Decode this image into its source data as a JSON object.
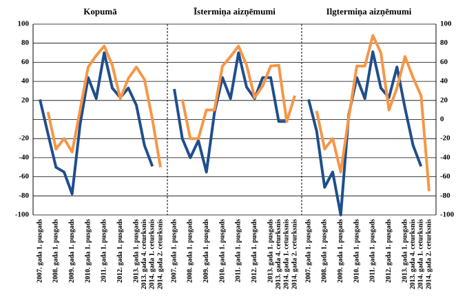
{
  "chart_data": {
    "type": "line",
    "ylim": [
      -100,
      100
    ],
    "yticks": [
      100,
      80,
      60,
      40,
      20,
      -20,
      -40,
      -60,
      -80,
      -100
    ],
    "y2lim": [
      -100,
      100
    ],
    "y2ticks": [
      100,
      80,
      60,
      40,
      20,
      0,
      -20,
      -40,
      -60,
      -80,
      -100
    ],
    "grid": true,
    "categories": [
      "2007. gada 1. pusgads",
      null,
      "2008. gada 1. pusgads",
      null,
      "2009. gada 1. pusgads",
      null,
      "2010. gada 1. pusgads",
      null,
      "2011. gada 1. pusgads",
      null,
      "2012. gada 1. pusgads",
      null,
      "2013. gada 1. pusgads",
      "2013. gada 4. ceturksnis",
      "2014. gada 1. ceturksnis",
      "2014. gada 2. ceturksnis"
    ],
    "panels": [
      {
        "title": "Kopumā",
        "series": [
          {
            "color": "#1f4e8c",
            "values": [
              21,
              -15,
              -50,
              -55,
              -78,
              -5,
              44,
              22,
              70,
              33,
              23,
              33,
              15,
              -27,
              -49,
              null
            ]
          },
          {
            "color": "#f79646",
            "values": [
              null,
              8,
              -31,
              -20,
              -34,
              10,
              55,
              67,
              77,
              57,
              22,
              43,
              55,
              42,
              0,
              -50
            ]
          }
        ]
      },
      {
        "title": "Īstermiņa aizņēmumi",
        "series": [
          {
            "color": "#1f4e8c",
            "values": [
              32,
              -20,
              -40,
              -22,
              -55,
              7,
              44,
              22,
              70,
              34,
              22,
              44,
              44,
              -2,
              -2,
              null
            ]
          },
          {
            "color": "#f79646",
            "values": [
              null,
              21,
              -20,
              -20,
              10,
              10,
              56,
              66,
              77,
              57,
              23,
              35,
              56,
              57,
              -2,
              25
            ]
          }
        ]
      },
      {
        "title": "Ilgtermiņa aizņēmumi",
        "series": [
          {
            "color": "#1f4e8c",
            "values": [
              21,
              -12,
              -71,
              -55,
              -100,
              5,
              44,
              22,
              71,
              33,
              23,
              55,
              12,
              -27,
              -49,
              null
            ]
          },
          {
            "color": "#f79646",
            "values": [
              null,
              9,
              -31,
              -20,
              -55,
              2,
              56,
              56,
              88,
              70,
              10,
              33,
              66,
              44,
              25,
              -75
            ]
          }
        ]
      }
    ]
  }
}
